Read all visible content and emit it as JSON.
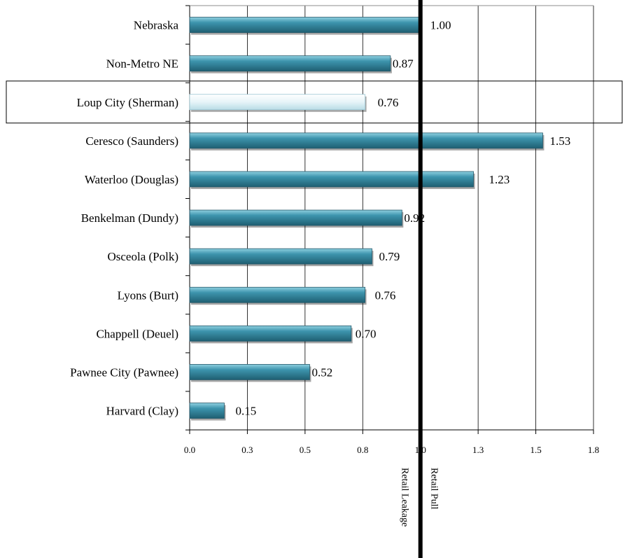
{
  "chart_data": {
    "type": "bar",
    "orientation": "horizontal",
    "categories": [
      "Nebraska",
      "Non-Metro NE",
      "Loup City (Sherman)",
      "Ceresco (Saunders)",
      "Waterloo (Douglas)",
      "Benkelman (Dundy)",
      "Osceola (Polk)",
      "Lyons (Burt)",
      "Chappell (Deuel)",
      "Pawnee City (Pawnee)",
      "Harvard (Clay)"
    ],
    "values": [
      1.0,
      0.87,
      0.76,
      1.53,
      1.23,
      0.92,
      0.79,
      0.76,
      0.7,
      0.52,
      0.15
    ],
    "value_labels": [
      "1.00",
      "0.87",
      "0.76",
      "1.53",
      "1.23",
      "0.92",
      "0.79",
      "0.76",
      "0.70",
      "0.52",
      "0.15"
    ],
    "highlighted_category": "Loup City (Sherman)",
    "xlim": [
      0,
      1.75
    ],
    "x_ticks": [
      0,
      0.25,
      0.5,
      0.75,
      1.0,
      1.25,
      1.5,
      1.75
    ],
    "x_tick_labels": [
      "0.0",
      "0.3",
      "0.5",
      "0.8",
      "1.0",
      "1.3",
      "1.5",
      "1.8"
    ],
    "reference_line": 1.0,
    "annotations": [
      "Retail Leakage",
      "Retail Pull"
    ],
    "grid": "vertical",
    "colors": {
      "bar": "#3a8fa8",
      "bar_highlight": "#eaf6f9",
      "reference_line": "#000000",
      "grid": "#000000"
    }
  }
}
